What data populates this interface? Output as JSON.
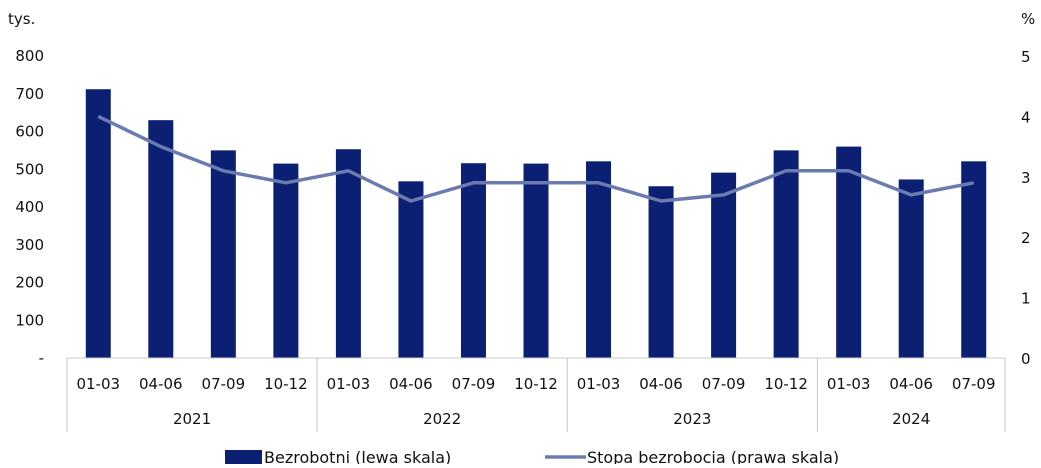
{
  "chart_data": {
    "type": "bar",
    "left_axis_unit": "tys.",
    "right_axis_unit": "%",
    "y_left_ticks": [
      "-",
      "100",
      "200",
      "300",
      "400",
      "500",
      "600",
      "700",
      "800"
    ],
    "y_right_ticks": [
      "0",
      "1",
      "2",
      "3",
      "4",
      "5"
    ],
    "ylim_left": [
      0,
      800
    ],
    "ylim_right": [
      0,
      5
    ],
    "groups": [
      {
        "label": "2021",
        "count": 4
      },
      {
        "label": "2022",
        "count": 4
      },
      {
        "label": "2023",
        "count": 4
      },
      {
        "label": "2024",
        "count": 3
      }
    ],
    "categories": [
      "01-03",
      "04-06",
      "07-09",
      "10-12",
      "01-03",
      "04-06",
      "07-09",
      "10-12",
      "01-03",
      "04-06",
      "07-09",
      "10-12",
      "01-03",
      "04-06",
      "07-09"
    ],
    "series": [
      {
        "name": "Bezrobotni (lewa skala)",
        "type": "bar",
        "axis": "left",
        "color": "#0b1f73",
        "values": [
          712,
          630,
          550,
          515,
          553,
          468,
          516,
          515,
          521,
          455,
          491,
          550,
          560,
          473,
          521
        ]
      },
      {
        "name": "Stopa bezrobocia (prawa skala)",
        "type": "line",
        "axis": "right",
        "color": "#6b7bb0",
        "values": [
          4.0,
          3.5,
          3.1,
          2.9,
          3.1,
          2.6,
          2.9,
          2.9,
          2.9,
          2.6,
          2.7,
          3.1,
          3.1,
          2.7,
          2.9
        ]
      }
    ],
    "legend_position": "bottom",
    "grid": false
  }
}
